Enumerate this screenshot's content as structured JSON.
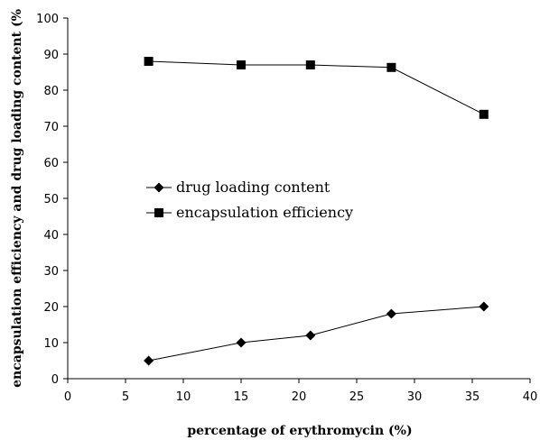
{
  "chart_data": {
    "type": "line",
    "xlabel": "percentage of erythromycin (%)",
    "ylabel": "encapsulation efficiency and drug loading content (%",
    "xlim": [
      0,
      40
    ],
    "ylim": [
      0,
      100
    ],
    "xticks": [
      0,
      5,
      10,
      15,
      20,
      25,
      30,
      35,
      40
    ],
    "yticks": [
      0,
      10,
      20,
      30,
      40,
      50,
      60,
      70,
      80,
      90,
      100
    ],
    "grid": false,
    "legend_position": "center-left",
    "series": [
      {
        "name": "drug loading content",
        "marker": "diamond",
        "color": "#000000",
        "x": [
          7,
          15,
          21,
          28,
          36
        ],
        "y": [
          5,
          10,
          12,
          18,
          20
        ]
      },
      {
        "name": "encapsulation efficiency",
        "marker": "square",
        "color": "#000000",
        "x": [
          7,
          15,
          21,
          28,
          36
        ],
        "y": [
          88,
          87,
          87,
          86.3,
          73.3
        ]
      }
    ]
  }
}
